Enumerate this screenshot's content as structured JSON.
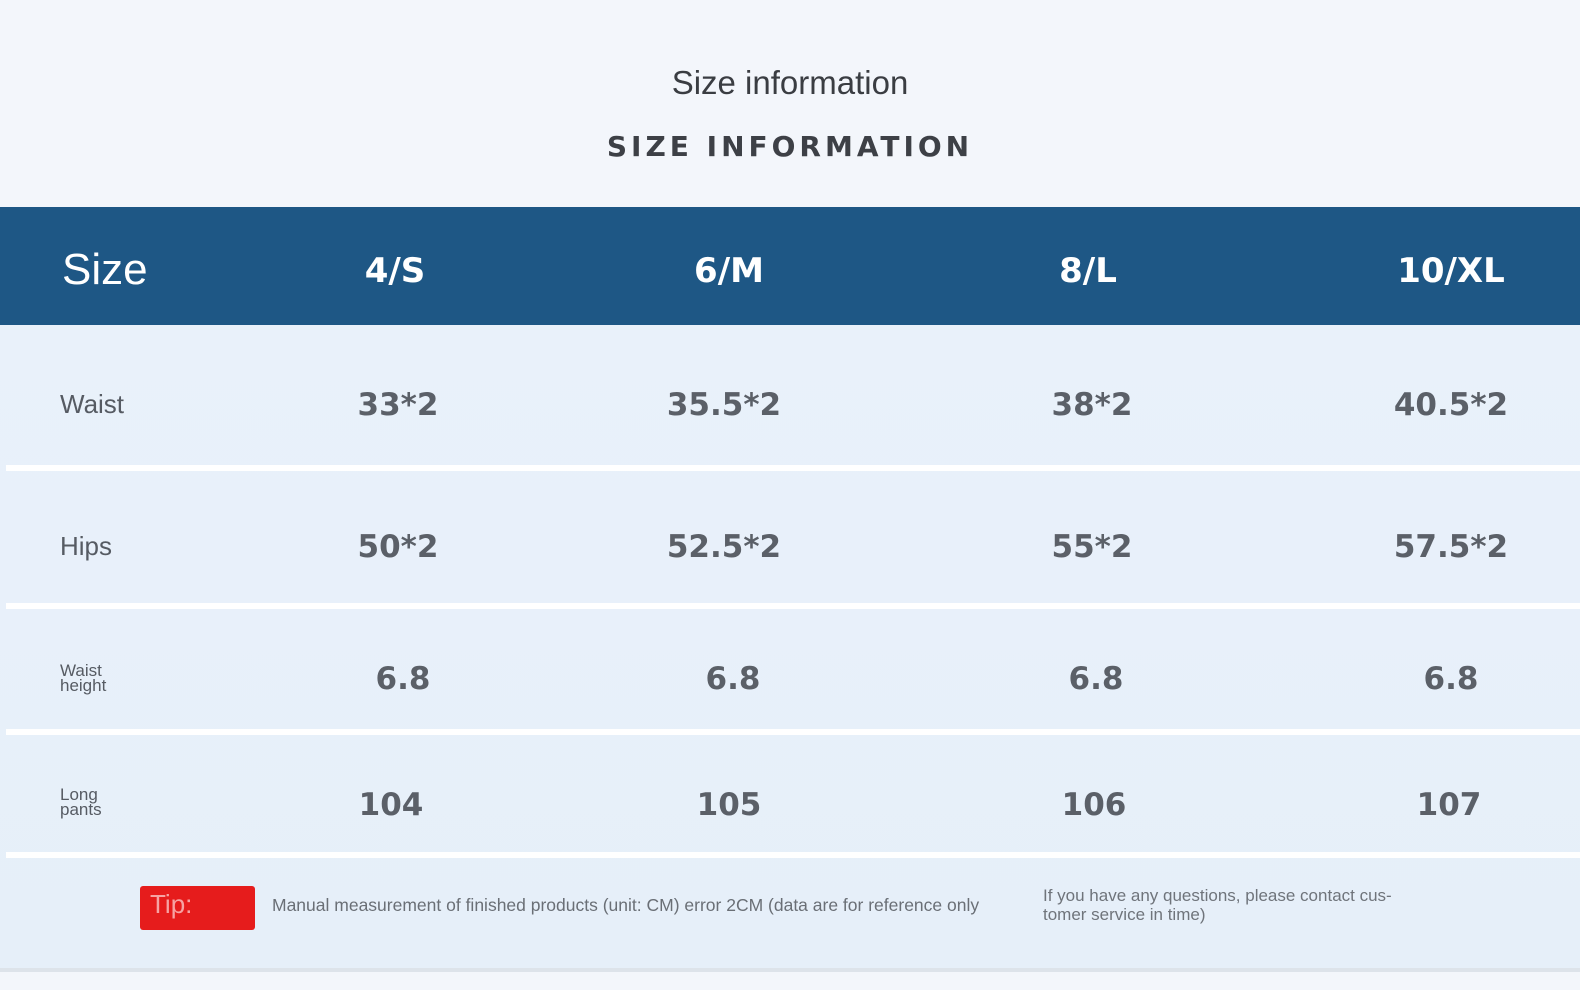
{
  "title": "Size information",
  "subtitle": "SIZE INFORMATION",
  "table": {
    "size_header": "Size",
    "columns": [
      "4/S",
      "6/M",
      "8/L",
      "10/XL"
    ],
    "rows": [
      {
        "label": "Waist",
        "values": [
          "33*2",
          "35.5*2",
          "38*2",
          "40.5*2"
        ]
      },
      {
        "label": "Hips",
        "values": [
          "50*2",
          "52.5*2",
          "55*2",
          "57.5*2"
        ]
      },
      {
        "label_lines": [
          "Waist",
          "height"
        ],
        "values": [
          "6.8",
          "6.8",
          "6.8",
          "6.8"
        ]
      },
      {
        "label_lines": [
          "Long",
          "pants"
        ],
        "values": [
          "104",
          "105",
          "106",
          "107"
        ]
      }
    ]
  },
  "footer": {
    "tip_label": "Tip:",
    "tip_text": "Manual measurement of finished products (unit: CM) error 2CM (data are for reference only",
    "contact_lines": [
      "If you have any questions, please contact cus-",
      "tomer service in time)"
    ]
  },
  "colors": {
    "header_band": "#1e5785",
    "tip_badge": "#e61c1c",
    "background": "#f3f6fb"
  }
}
